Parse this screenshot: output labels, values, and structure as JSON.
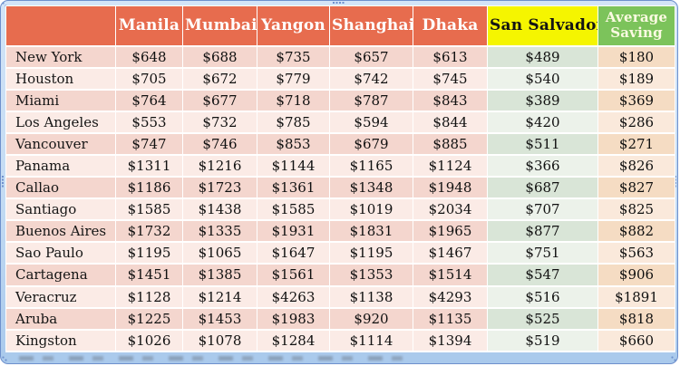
{
  "chart_data": {
    "type": "table",
    "title": "",
    "value_format": "${v}",
    "columns": [
      "",
      "Manila",
      "Mumbai",
      "Yangon",
      "Shanghai",
      "Dhaka",
      "San Salvador",
      "Average Saving"
    ],
    "rows": [
      {
        "label": "New York",
        "values": [
          648,
          688,
          735,
          657,
          613,
          489,
          180
        ]
      },
      {
        "label": "Houston",
        "values": [
          705,
          672,
          779,
          742,
          745,
          540,
          189
        ]
      },
      {
        "label": "Miami",
        "values": [
          764,
          677,
          718,
          787,
          843,
          389,
          369
        ]
      },
      {
        "label": "Los Angeles",
        "values": [
          553,
          732,
          785,
          594,
          844,
          420,
          286
        ]
      },
      {
        "label": "Vancouver",
        "values": [
          747,
          746,
          853,
          679,
          885,
          511,
          271
        ]
      },
      {
        "label": "Panama",
        "values": [
          1311,
          1216,
          1144,
          1165,
          1124,
          366,
          826
        ]
      },
      {
        "label": "Callao",
        "values": [
          1186,
          1723,
          1361,
          1348,
          1948,
          687,
          827
        ]
      },
      {
        "label": "Santiago",
        "values": [
          1585,
          1438,
          1585,
          1019,
          2034,
          707,
          825
        ]
      },
      {
        "label": "Buenos Aires",
        "values": [
          1732,
          1335,
          1931,
          1831,
          1965,
          877,
          882
        ]
      },
      {
        "label": "Sao Paulo",
        "values": [
          1195,
          1065,
          1647,
          1195,
          1467,
          751,
          563
        ]
      },
      {
        "label": "Cartagena",
        "values": [
          1451,
          1385,
          1561,
          1353,
          1514,
          547,
          906
        ]
      },
      {
        "label": "Veracruz",
        "values": [
          1128,
          1214,
          4263,
          1138,
          4293,
          516,
          1891
        ]
      },
      {
        "label": "Aruba",
        "values": [
          1225,
          1453,
          1983,
          920,
          1135,
          525,
          818
        ]
      },
      {
        "label": "Kingston",
        "values": [
          1026,
          1078,
          1284,
          1114,
          1394,
          519,
          660
        ]
      }
    ],
    "highlighted_columns": [
      "San Salvador",
      "Average Saving"
    ],
    "legend_position": "none",
    "grid": "white-separators"
  },
  "styles": {
    "header_bg": "#E76C4E",
    "header_fg": "#FFFFFF",
    "san_salvador_header_bg": "#F5F500",
    "san_salvador_header_fg": "#141414",
    "average_header_bg": "#7CC35B",
    "average_header_fg": "#FBFAE2",
    "pink_odd": "#F4D6CE",
    "pink_even": "#FBEBE6",
    "mint_odd": "#D9E5D7",
    "mint_even": "#ECF2EA",
    "tan_odd": "#F5DCC3",
    "tan_even": "#FAE9DB",
    "frame_fill": "#C3DBF3",
    "frame_line": "#6E90CC"
  }
}
